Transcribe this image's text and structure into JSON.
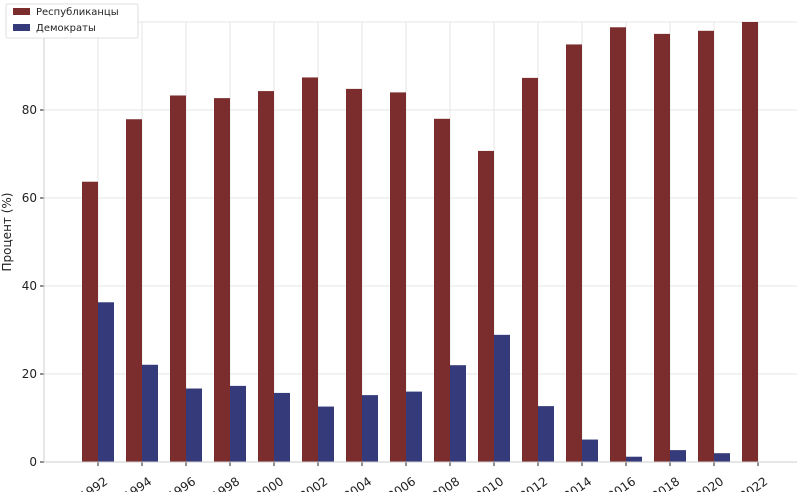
{
  "colors": {
    "republicans": "#7b2d2d",
    "democrats": "#343a7a",
    "grid": "#e6e6e6",
    "axis": "#222222"
  },
  "chart_data": {
    "type": "bar",
    "title": "",
    "xlabel": "",
    "ylabel": "Процент (%)",
    "ylim": [
      0,
      100
    ],
    "yticks": [
      0,
      20,
      40,
      60,
      80,
      100
    ],
    "grid": true,
    "legend_position": "top-left",
    "categories": [
      "1992",
      "1994",
      "1996",
      "1998",
      "2000",
      "2002",
      "2004",
      "2006",
      "2008",
      "2010",
      "2012",
      "2014",
      "2016",
      "2018",
      "2020",
      "2022"
    ],
    "series": [
      {
        "name": "Республиканцы",
        "color": "#7b2d2d",
        "values": [
          63.7,
          77.9,
          83.3,
          82.7,
          84.3,
          87.4,
          84.8,
          84.0,
          78.0,
          70.7,
          87.3,
          94.9,
          98.8,
          97.3,
          98.0,
          100.0
        ]
      },
      {
        "name": "Демократы",
        "color": "#343a7a",
        "values": [
          36.3,
          22.1,
          16.7,
          17.3,
          15.7,
          12.6,
          15.2,
          16.0,
          22.0,
          28.9,
          12.7,
          5.1,
          1.2,
          2.7,
          2.0,
          0.0
        ]
      }
    ]
  }
}
